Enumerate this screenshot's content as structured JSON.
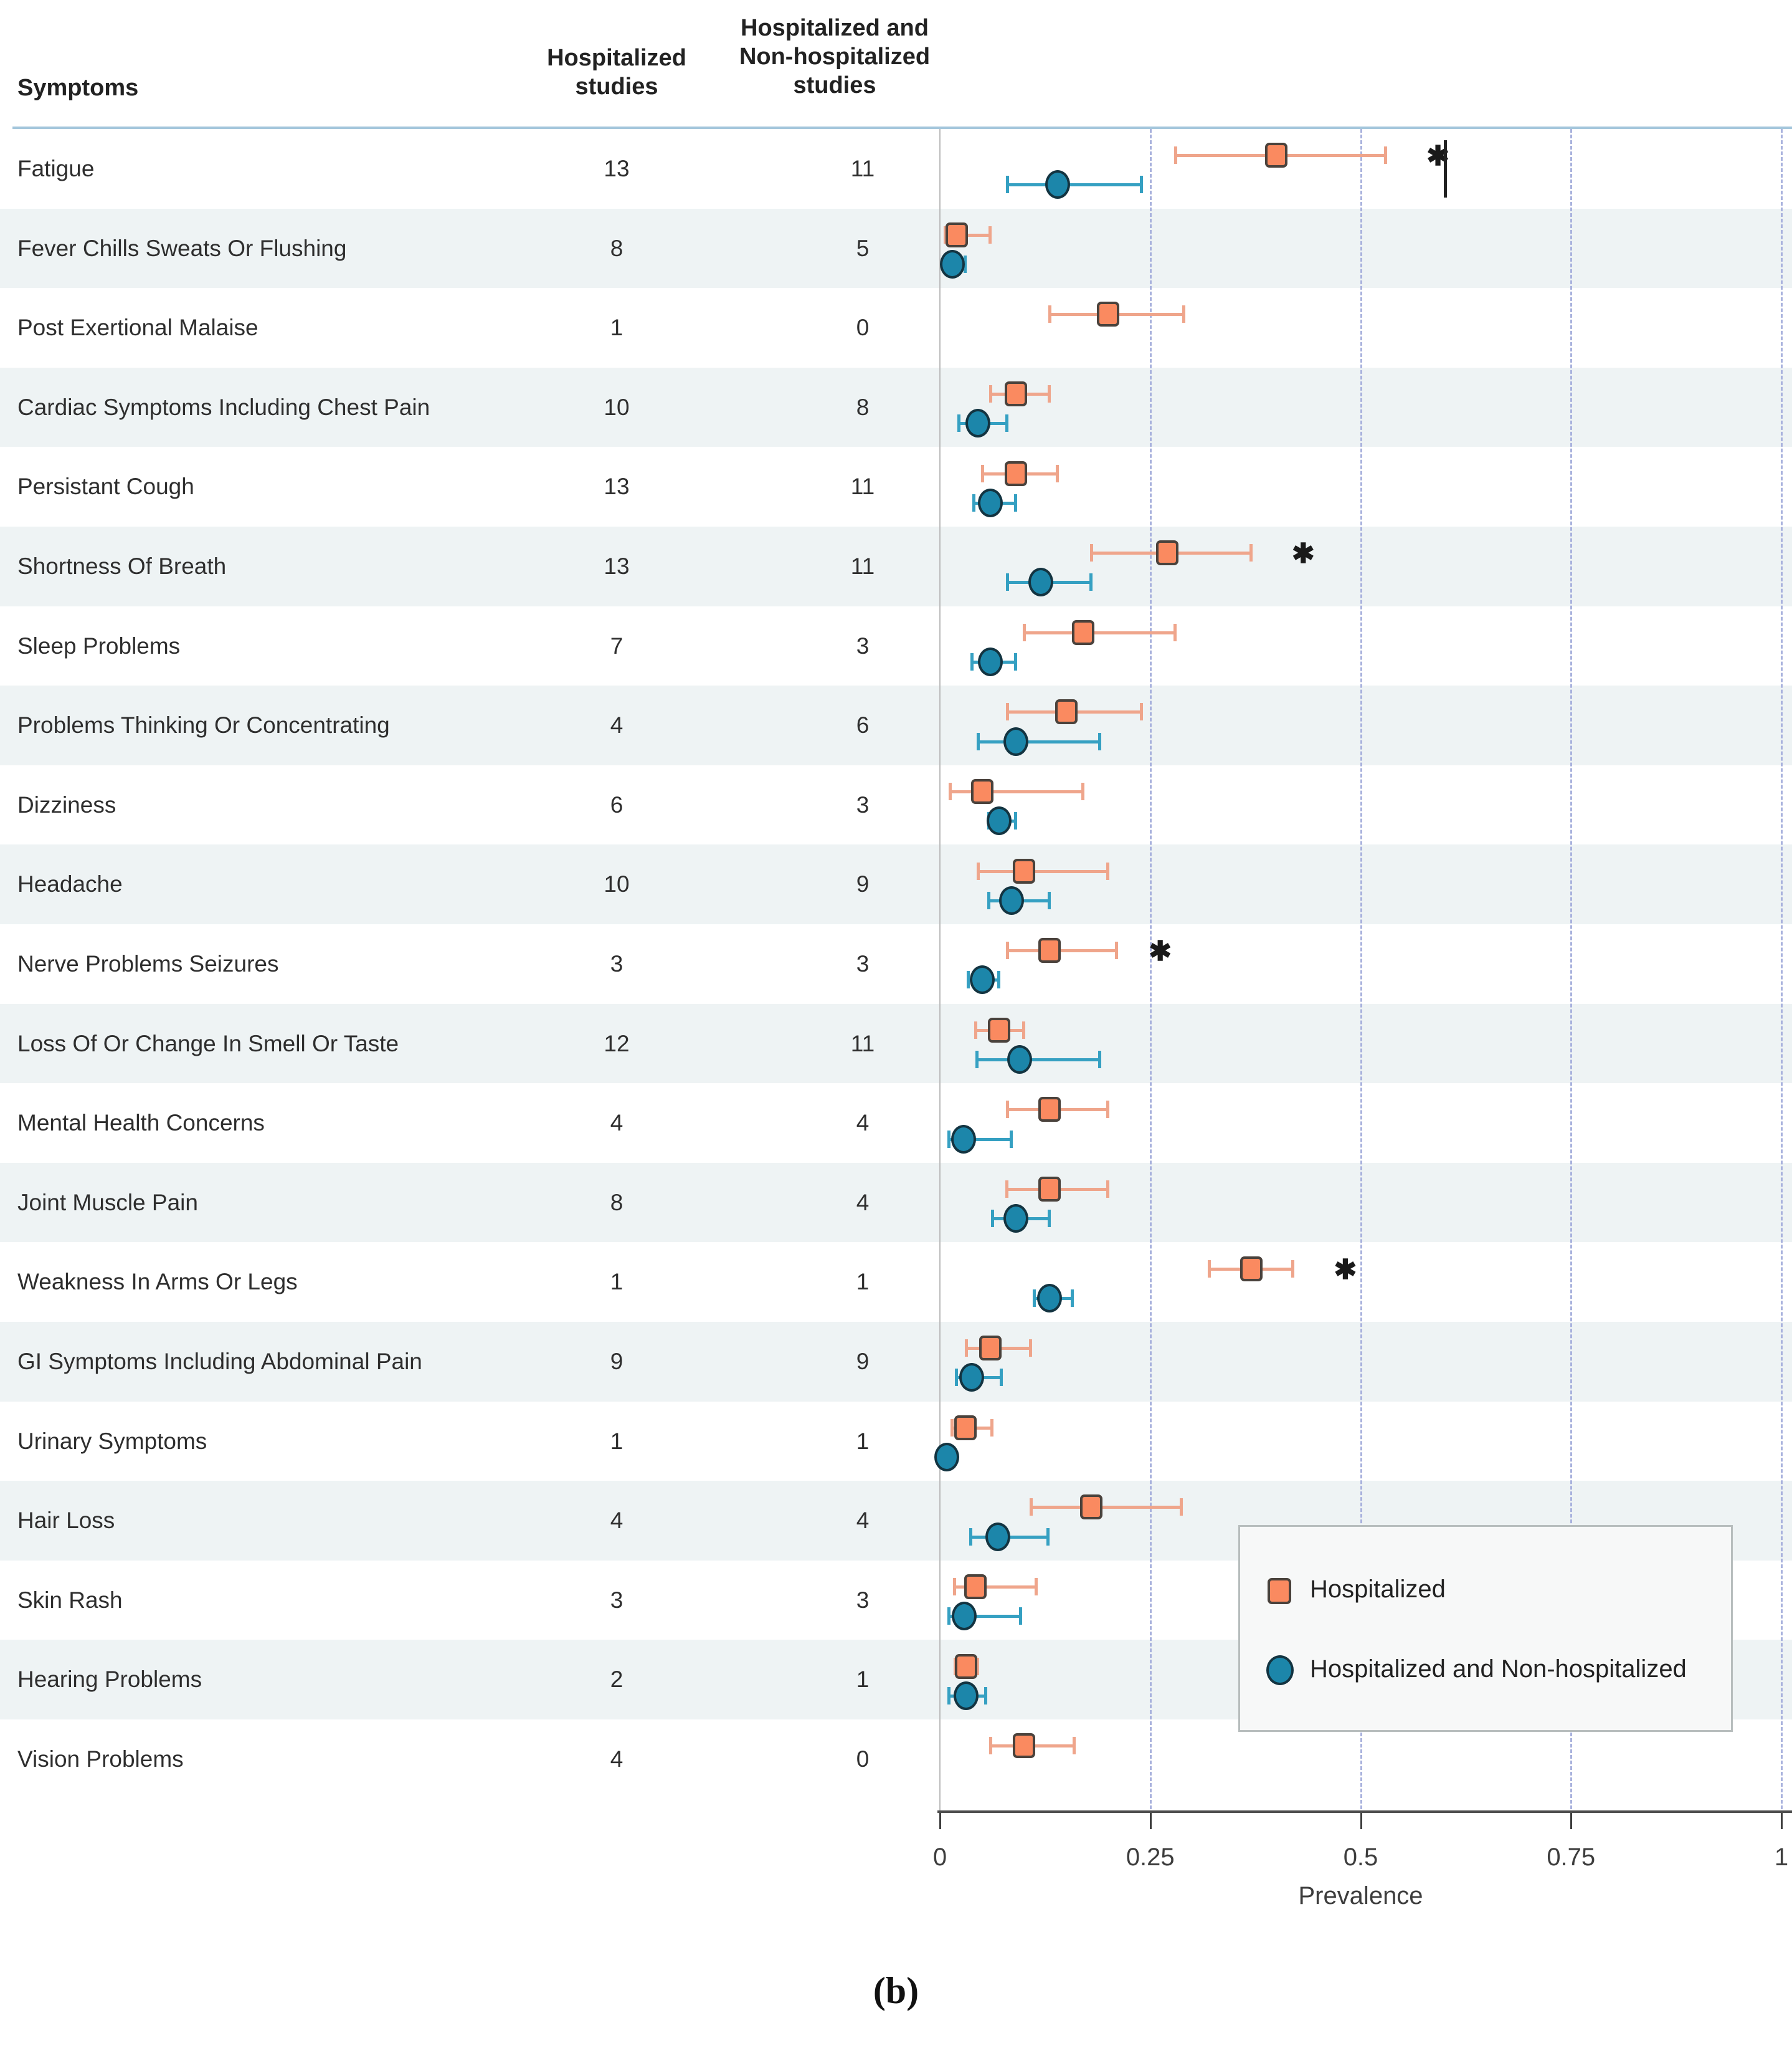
{
  "header": {
    "symptoms": "Symptoms",
    "hosp1": "Hospitalized",
    "hosp2": "studies",
    "comb1": "Hospitalized and",
    "comb2": "Non-hospitalized",
    "comb3": "studies"
  },
  "axis": {
    "label": "Prevalence",
    "ticks": [
      0,
      0.25,
      0.5,
      0.75,
      1
    ],
    "tick_labels": [
      "0",
      "0.25",
      "0.5",
      "0.75",
      "1"
    ],
    "range": [
      0,
      1
    ]
  },
  "legend": {
    "items": [
      {
        "label": "Hospitalized",
        "shape": "square",
        "color": "#FA8A60"
      },
      {
        "label": "Hospitalized and Non-hospitalized",
        "shape": "circle",
        "color": "#1C86AA"
      }
    ]
  },
  "caption": "(b)",
  "colors": {
    "hospitalized_fill": "#FA8A60",
    "hospitalized_whisker": "#efa58b",
    "combined_fill": "#1C86AA",
    "combined_whisker": "#35a0c2",
    "stripe": "#eef3f4",
    "header_rule": "#a4c6dc",
    "gridline_dashed": "#a9b2dd"
  },
  "chart_data": {
    "type": "scatter",
    "subtype": "forest-plot-with-error-bars",
    "xlabel": "Prevalence",
    "xlim": [
      0,
      1
    ],
    "x_ticks": [
      0,
      0.25,
      0.5,
      0.75,
      1
    ],
    "legend_position": "right-center",
    "series_names": [
      "Hospitalized",
      "Hospitalized and Non-hospitalized"
    ],
    "rows": [
      {
        "symptom": "Fatigue",
        "hosp_n": "13",
        "comb_n": "11",
        "h": {
          "est": 0.4,
          "lo": 0.28,
          "hi": 0.53
        },
        "c": {
          "est": 0.14,
          "lo": 0.08,
          "hi": 0.24
        },
        "asterisk": 0.59,
        "vline": 0.6
      },
      {
        "symptom": "Fever Chills Sweats Or Flushing",
        "hosp_n": "8",
        "comb_n": "5",
        "h": {
          "est": 0.02,
          "lo": 0.006,
          "hi": 0.06
        },
        "c": {
          "est": 0.015,
          "lo": 0.005,
          "hi": 0.03
        }
      },
      {
        "symptom": "Post Exertional Malaise",
        "hosp_n": "1",
        "comb_n": "0",
        "h": {
          "est": 0.2,
          "lo": 0.13,
          "hi": 0.29
        },
        "c": null
      },
      {
        "symptom": "Cardiac Symptoms Including Chest Pain",
        "hosp_n": "10",
        "comb_n": "8",
        "h": {
          "est": 0.09,
          "lo": 0.06,
          "hi": 0.13
        },
        "c": {
          "est": 0.045,
          "lo": 0.022,
          "hi": 0.08
        }
      },
      {
        "symptom": "Persistant Cough",
        "hosp_n": "13",
        "comb_n": "11",
        "h": {
          "est": 0.09,
          "lo": 0.05,
          "hi": 0.14
        },
        "c": {
          "est": 0.06,
          "lo": 0.04,
          "hi": 0.09
        }
      },
      {
        "symptom": "Shortness Of Breath",
        "hosp_n": "13",
        "comb_n": "11",
        "h": {
          "est": 0.27,
          "lo": 0.18,
          "hi": 0.37
        },
        "c": {
          "est": 0.12,
          "lo": 0.08,
          "hi": 0.18
        },
        "asterisk": 0.43
      },
      {
        "symptom": "Sleep Problems",
        "hosp_n": "7",
        "comb_n": "3",
        "h": {
          "est": 0.17,
          "lo": 0.1,
          "hi": 0.28
        },
        "c": {
          "est": 0.06,
          "lo": 0.038,
          "hi": 0.09
        }
      },
      {
        "symptom": "Problems Thinking Or Concentrating",
        "hosp_n": "4",
        "comb_n": "6",
        "h": {
          "est": 0.15,
          "lo": 0.08,
          "hi": 0.24
        },
        "c": {
          "est": 0.09,
          "lo": 0.045,
          "hi": 0.19
        }
      },
      {
        "symptom": "Dizziness",
        "hosp_n": "6",
        "comb_n": "3",
        "h": {
          "est": 0.05,
          "lo": 0.012,
          "hi": 0.17
        },
        "c": {
          "est": 0.07,
          "lo": 0.058,
          "hi": 0.09
        }
      },
      {
        "symptom": "Headache",
        "hosp_n": "10",
        "comb_n": "9",
        "h": {
          "est": 0.1,
          "lo": 0.045,
          "hi": 0.2
        },
        "c": {
          "est": 0.085,
          "lo": 0.058,
          "hi": 0.13
        }
      },
      {
        "symptom": "Nerve Problems Seizures",
        "hosp_n": "3",
        "comb_n": "3",
        "h": {
          "est": 0.13,
          "lo": 0.08,
          "hi": 0.21
        },
        "c": {
          "est": 0.05,
          "lo": 0.033,
          "hi": 0.07
        },
        "asterisk": 0.26
      },
      {
        "symptom": "Loss Of Or Change In Smell Or Taste",
        "hosp_n": "12",
        "comb_n": "11",
        "h": {
          "est": 0.07,
          "lo": 0.042,
          "hi": 0.1
        },
        "c": {
          "est": 0.095,
          "lo": 0.044,
          "hi": 0.19
        }
      },
      {
        "symptom": "Mental Health Concerns",
        "hosp_n": "4",
        "comb_n": "4",
        "h": {
          "est": 0.13,
          "lo": 0.08,
          "hi": 0.2
        },
        "c": {
          "est": 0.028,
          "lo": 0.01,
          "hi": 0.085
        }
      },
      {
        "symptom": "Joint Muscle Pain",
        "hosp_n": "8",
        "comb_n": "4",
        "h": {
          "est": 0.13,
          "lo": 0.079,
          "hi": 0.2
        },
        "c": {
          "est": 0.09,
          "lo": 0.062,
          "hi": 0.13
        }
      },
      {
        "symptom": "Weakness In Arms Or Legs",
        "hosp_n": "1",
        "comb_n": "1",
        "h": {
          "est": 0.37,
          "lo": 0.32,
          "hi": 0.42
        },
        "c": {
          "est": 0.13,
          "lo": 0.112,
          "hi": 0.158
        },
        "asterisk": 0.48
      },
      {
        "symptom": "GI Symptoms Including Abdominal Pain",
        "hosp_n": "9",
        "comb_n": "9",
        "h": {
          "est": 0.06,
          "lo": 0.031,
          "hi": 0.108
        },
        "c": {
          "est": 0.038,
          "lo": 0.019,
          "hi": 0.073
        }
      },
      {
        "symptom": "Urinary Symptoms",
        "hosp_n": "1",
        "comb_n": "1",
        "h": {
          "est": 0.03,
          "lo": 0.014,
          "hi": 0.062
        },
        "c": {
          "est": 0.008,
          "lo": 0.003,
          "hi": 0.018
        }
      },
      {
        "symptom": "Hair Loss",
        "hosp_n": "4",
        "comb_n": "4",
        "h": {
          "est": 0.18,
          "lo": 0.108,
          "hi": 0.287
        },
        "c": {
          "est": 0.069,
          "lo": 0.036,
          "hi": 0.129
        }
      },
      {
        "symptom": "Skin Rash",
        "hosp_n": "3",
        "comb_n": "3",
        "h": {
          "est": 0.042,
          "lo": 0.017,
          "hi": 0.115
        },
        "c": {
          "est": 0.029,
          "lo": 0.01,
          "hi": 0.096
        }
      },
      {
        "symptom": "Hearing Problems",
        "hosp_n": "2",
        "comb_n": "1",
        "h": {
          "est": 0.031,
          "lo": 0.018,
          "hi": 0.045
        },
        "c": {
          "est": 0.031,
          "lo": 0.01,
          "hi": 0.055
        }
      },
      {
        "symptom": "Vision Problems",
        "hosp_n": "4",
        "comb_n": "0",
        "h": {
          "est": 0.1,
          "lo": 0.06,
          "hi": 0.16
        },
        "c": null
      }
    ]
  }
}
